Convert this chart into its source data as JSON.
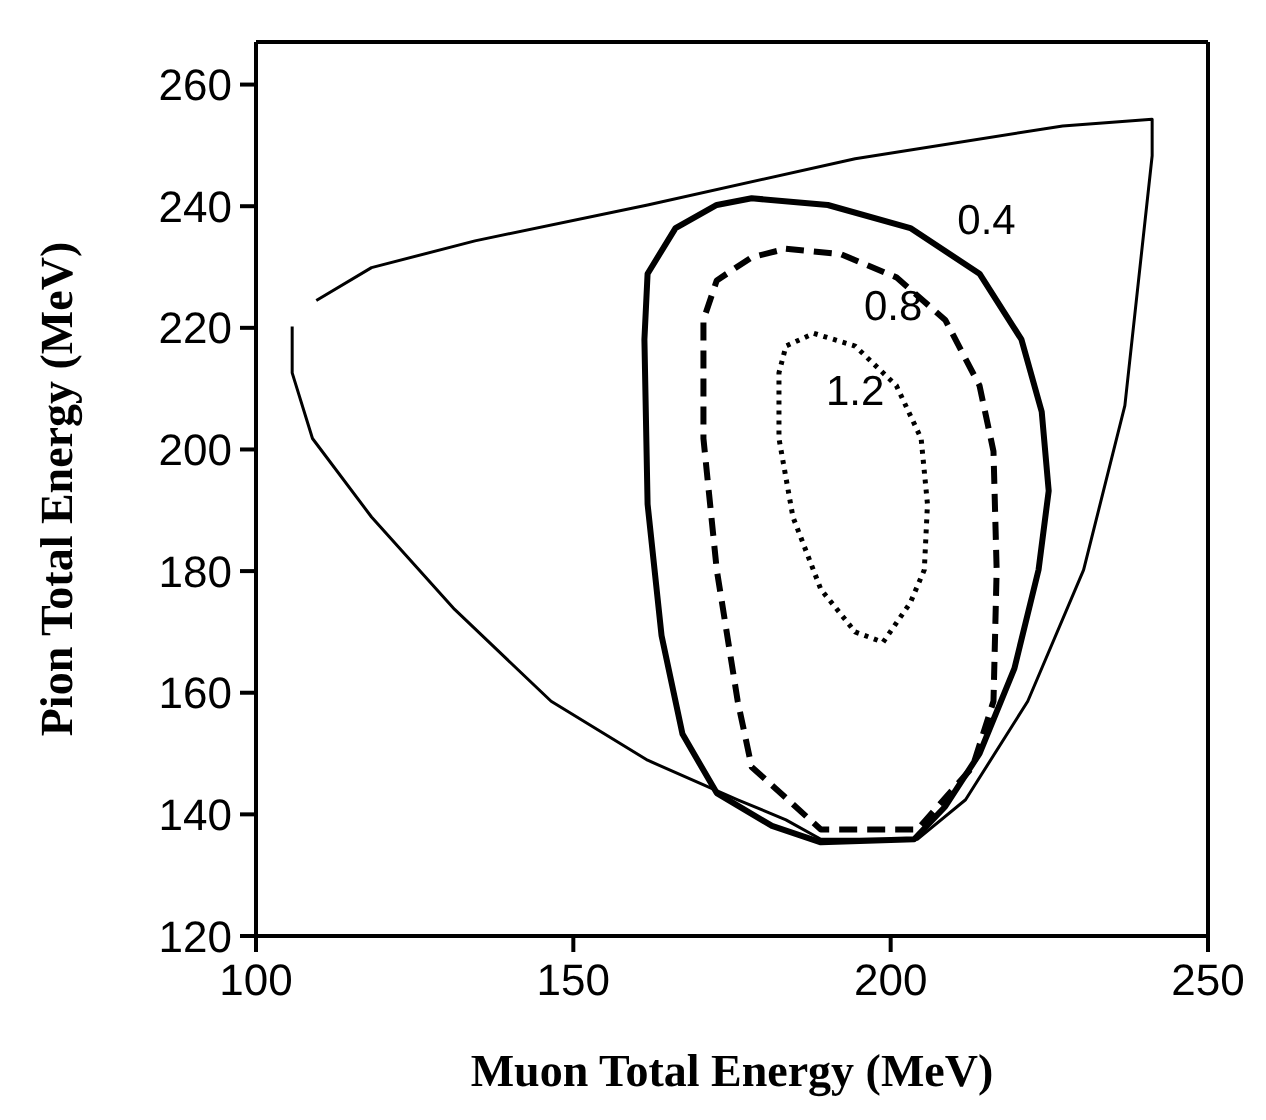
{
  "chart_data": {
    "type": "line",
    "series": [
      {
        "color": "#000000",
        "x": [
          105.7,
          105.7,
          108.9,
          118.2,
          131.3,
          146.5,
          161.7,
          175.9,
          183.5,
          189.0,
          204.2,
          211.8,
          221.6,
          230.4,
          236.9,
          241.2,
          241.2,
          227.1,
          194.4,
          161.7,
          134.5,
          118.2,
          109.5
        ],
        "values": [
          220.2,
          212.6,
          201.8,
          188.9,
          173.7,
          158.6,
          148.9,
          142.4,
          139.1,
          135.9,
          135.9,
          142.4,
          158.6,
          180.2,
          207.2,
          248.3,
          254.3,
          253.2,
          247.8,
          240.2,
          234.3,
          229.9,
          224.5
        ]
      }
    ],
    "xlabel": "Muon Total Energy (MeV)",
    "ylabel": "Pion Total Energy (MeV)",
    "xlim": [
      100,
      250
    ],
    "xticks": [
      100,
      150,
      200,
      250
    ],
    "ylim": [
      120,
      267
    ],
    "yticks": [
      120,
      140,
      160,
      180,
      200,
      220,
      240,
      260
    ],
    "annotations": [
      "0.4",
      "0.8",
      "1.2"
    ]
  }
}
